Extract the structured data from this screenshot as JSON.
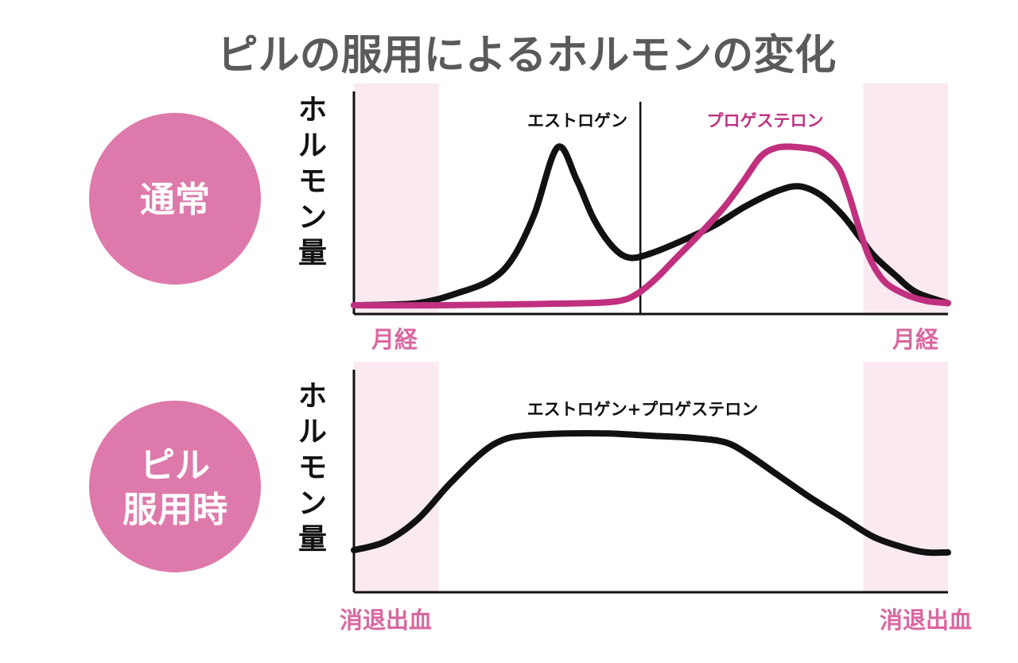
{
  "title": "ピルの服用によるホルモンの変化",
  "colors": {
    "title": "#5a5a5a",
    "badge": "#de7aab",
    "band": "#fbe9f2",
    "band_label": "#d9679f",
    "estrogen": "#111111",
    "progesterone": "#c0307f"
  },
  "chart_data": [
    {
      "id": "normal",
      "type": "line",
      "badge_lines": [
        "通常"
      ],
      "ylabel": "ホルモン量",
      "x_domain": [
        0,
        28
      ],
      "ylim": [
        0,
        100
      ],
      "shaded_bands": [
        {
          "start": 0,
          "end": 4,
          "label": "月経"
        },
        {
          "start": 24,
          "end": 28,
          "label": "月経"
        }
      ],
      "marker_line_x": 13.5,
      "series": [
        {
          "name": "エストロゲン",
          "color": "#111111",
          "x": [
            0,
            3,
            5,
            6.5,
            7.5,
            8.5,
            9.6,
            10.5,
            11.3,
            12.2,
            13.0,
            14.0,
            15.5,
            17,
            18.5,
            20,
            21,
            22,
            23,
            23.8,
            24.5,
            25.5,
            26.5,
            28
          ],
          "y": [
            0,
            1,
            6,
            12,
            22,
            42,
            73,
            58,
            40,
            27,
            22,
            24,
            30,
            37,
            46,
            53,
            55,
            51,
            42,
            32,
            23,
            14,
            6,
            1
          ]
        },
        {
          "name": "プロゲステロン",
          "color": "#c0307f",
          "x": [
            0,
            4,
            8,
            11,
            12.5,
            13.3,
            14.2,
            15.2,
            16.4,
            17.5,
            18.4,
            19.2,
            20,
            21,
            22,
            22.8,
            23.3,
            23.8,
            24.3,
            25,
            26,
            27,
            28
          ],
          "y": [
            0,
            0,
            0.5,
            1,
            2,
            5,
            12,
            22,
            34,
            46,
            58,
            69,
            73,
            73,
            71,
            64,
            52,
            36,
            22,
            11,
            5,
            2,
            1
          ]
        }
      ]
    },
    {
      "id": "pill",
      "type": "line",
      "badge_lines": [
        "ピル",
        "服用時"
      ],
      "ylabel": "ホルモン量",
      "x_domain": [
        0,
        28
      ],
      "ylim": [
        0,
        100
      ],
      "shaded_bands": [
        {
          "start": 0,
          "end": 4,
          "label": "消退出血"
        },
        {
          "start": 24,
          "end": 28,
          "label": "消退出血"
        }
      ],
      "series": [
        {
          "name": "エストロゲン+プロゲステロン",
          "color": "#111111",
          "x": [
            0,
            1.5,
            3,
            4.5,
            6,
            7,
            8,
            10,
            12,
            14,
            16,
            17.5,
            18.5,
            20,
            21.5,
            23,
            24.5,
            26,
            27,
            28
          ],
          "y": [
            18,
            22,
            32,
            48,
            62,
            68,
            70,
            71,
            71,
            70,
            69,
            67,
            62,
            52,
            42,
            33,
            24,
            19,
            17,
            17
          ]
        }
      ]
    }
  ]
}
